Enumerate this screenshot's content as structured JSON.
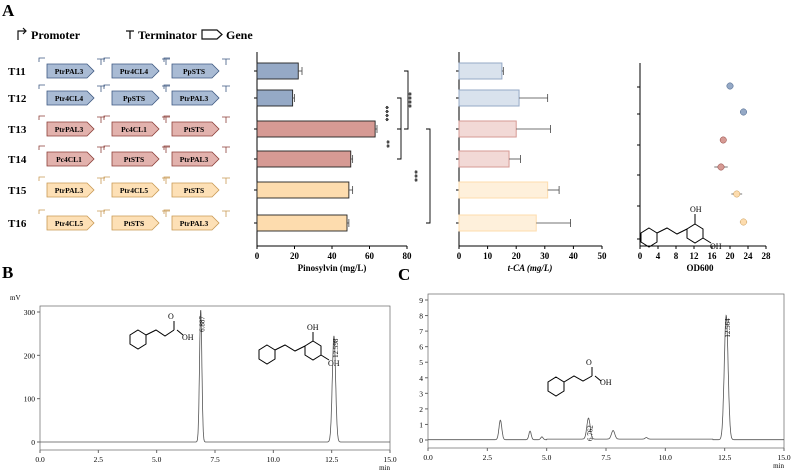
{
  "panel_labels": {
    "a": "A",
    "b": "B",
    "c": "C"
  },
  "legend": {
    "promoter": "Promoter",
    "terminator": "Terminator",
    "gene": "Gene"
  },
  "strains": [
    {
      "name": "T11",
      "genes": [
        "PtrPAL3",
        "Ptr4CL4",
        "PpSTS"
      ],
      "family": "blue"
    },
    {
      "name": "T12",
      "genes": [
        "Ptr4CL4",
        "PpSTS",
        "PtrPAL3"
      ],
      "family": "blue"
    },
    {
      "name": "T13",
      "genes": [
        "PtrPAL3",
        "Pc4CL1",
        "PtSTS"
      ],
      "family": "red"
    },
    {
      "name": "T14",
      "genes": [
        "Pc4CL1",
        "PtSTS",
        "PtrPAL3"
      ],
      "family": "red"
    },
    {
      "name": "T15",
      "genes": [
        "PtrPAL3",
        "Ptr4CL5",
        "PtSTS"
      ],
      "family": "orange"
    },
    {
      "name": "T16",
      "genes": [
        "Ptr4CL5",
        "PtSTS",
        "PtrPAL3"
      ],
      "family": "orange"
    }
  ],
  "colors": {
    "blue": {
      "fill": "#95a9c6",
      "light": "#c9d5e6",
      "stroke": "#3f5a82",
      "gene": "#a9bbd4"
    },
    "red": {
      "fill": "#d69a94",
      "light": "#ecc9c5",
      "stroke": "#8c3f39",
      "gene": "#e2b2ad"
    },
    "orange": {
      "fill": "#fddcae",
      "light": "#fde9cc",
      "stroke": "#c99a55",
      "gene": "#fde0b6"
    }
  },
  "significance": [
    "****",
    "****",
    "**",
    "***"
  ],
  "chart_data": [
    {
      "id": "pinosylvin",
      "type": "bar",
      "orientation": "horizontal",
      "categories": [
        "T11",
        "T12",
        "T13",
        "T14",
        "T15",
        "T16"
      ],
      "values": [
        22,
        19,
        63,
        50,
        49,
        48
      ],
      "errors": [
        2,
        1,
        1,
        1,
        2,
        1
      ],
      "xlabel": "Pinosylvin (mg/L)",
      "xlim": [
        0,
        80
      ],
      "xticks": [
        0,
        20,
        40,
        60,
        80
      ]
    },
    {
      "id": "tca",
      "type": "bar",
      "orientation": "horizontal",
      "categories": [
        "T11",
        "T12",
        "T13",
        "T14",
        "T15",
        "T16"
      ],
      "values": [
        15,
        21,
        20,
        17.5,
        31,
        27
      ],
      "errors": [
        0.5,
        10,
        12,
        4,
        4,
        12
      ],
      "xlabel": "t-CA (mg/L)",
      "xlim": [
        0,
        50
      ],
      "xticks": [
        0,
        10,
        20,
        30,
        40,
        50
      ]
    },
    {
      "id": "od600",
      "type": "scatter",
      "categories": [
        "T11",
        "T12",
        "T13",
        "T14",
        "T15",
        "T16"
      ],
      "values": [
        20,
        23,
        18.5,
        18,
        21.5,
        23
      ],
      "errors": [
        0.3,
        0.5,
        0.5,
        1.5,
        1.2,
        0.8
      ],
      "xlabel": "OD600",
      "xlim": [
        0,
        28
      ],
      "xticks": [
        0,
        4,
        8,
        12,
        16,
        20,
        24,
        28
      ]
    },
    {
      "id": "chromatogram_b",
      "type": "line",
      "ylabel": "mV",
      "xunit": "min",
      "xlim": [
        0,
        15
      ],
      "ylim": [
        0,
        320
      ],
      "xticks": [
        "0.0",
        "2.5",
        "5.0",
        "7.5",
        "10.0",
        "12.5",
        "15.0"
      ],
      "yticks": [
        0,
        100,
        200,
        300
      ],
      "peaks": [
        {
          "rt": 6.887,
          "label": "6.887",
          "height": 305,
          "width": 0.05
        },
        {
          "rt": 12.598,
          "label": "12.598",
          "height": 245,
          "width": 0.07
        }
      ]
    },
    {
      "id": "chromatogram_c",
      "type": "line",
      "ylabel": "",
      "xunit": "min",
      "xlim": [
        0,
        15
      ],
      "xticks": [
        "0.0",
        "2.5",
        "5.0",
        "7.5",
        "10.0",
        "12.5",
        "15.0"
      ],
      "yticks": [
        0,
        1,
        2,
        3,
        4,
        5,
        6,
        7,
        8,
        9
      ],
      "peaks": [
        {
          "rt": 3.05,
          "label": "",
          "height": 1.25,
          "width": 0.06
        },
        {
          "rt": 4.3,
          "label": "",
          "height": 0.55,
          "width": 0.05
        },
        {
          "rt": 4.8,
          "label": "",
          "height": 0.18,
          "width": 0.05
        },
        {
          "rt": 6.762,
          "label": "6.762",
          "height": 1.35,
          "width": 0.07
        },
        {
          "rt": 7.8,
          "label": "",
          "height": 0.55,
          "width": 0.07
        },
        {
          "rt": 9.2,
          "label": "",
          "height": 0.1,
          "width": 0.05
        },
        {
          "rt": 12.564,
          "label": "12.564",
          "height": 8.0,
          "width": 0.08
        }
      ]
    }
  ]
}
